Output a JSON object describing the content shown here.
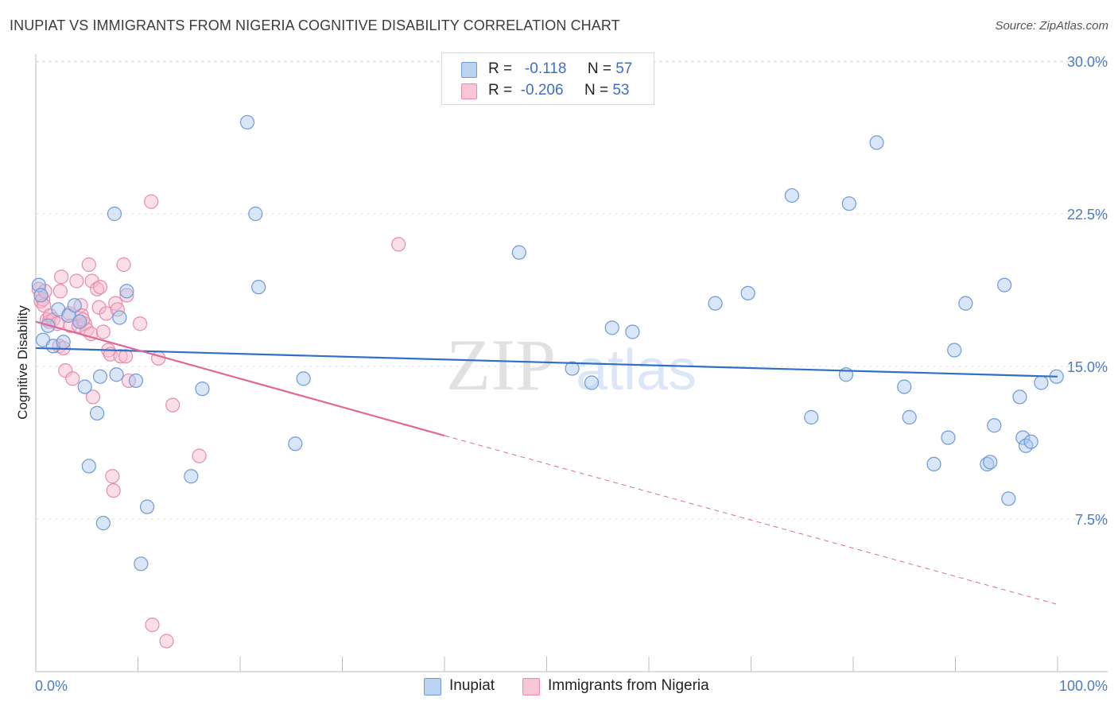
{
  "title": "INUPIAT VS IMMIGRANTS FROM NIGERIA COGNITIVE DISABILITY CORRELATION CHART",
  "source": "Source: ZipAtlas.com",
  "watermark": {
    "zip": "ZIP",
    "atlas": "atlas"
  },
  "legend": {
    "rows": [
      {
        "r_label": "R =",
        "r_value": "-0.118",
        "n_label": "N =",
        "n_value": "57"
      },
      {
        "r_label": "R =",
        "r_value": "-0.206",
        "n_label": "N =",
        "n_value": "53"
      }
    ]
  },
  "bottom_legend": [
    "Inupiat",
    "Immigrants from Nigeria"
  ],
  "colors": {
    "blue_fill": "#a9c8ee",
    "blue_stroke": "#6f9ad6",
    "blue_line": "#2f6fc6",
    "pink_fill": "#f6b9cd",
    "pink_stroke": "#e98aab",
    "pink_line": "#e0679a",
    "grid": "#e3e3e3",
    "axis_text": "#4a7cc0"
  },
  "chart_data": {
    "type": "scatter",
    "title": "INUPIAT VS IMMIGRANTS FROM NIGERIA COGNITIVE DISABILITY CORRELATION CHART",
    "xlabel": "",
    "ylabel": "Cognitive Disability",
    "xlim": [
      0,
      100
    ],
    "ylim": [
      0,
      31
    ],
    "x_tick_labels": [
      "0.0%",
      "100.0%"
    ],
    "y_ticks": [
      7.5,
      15.0,
      22.5,
      30.0
    ],
    "y_tick_labels": [
      "7.5%",
      "15.0%",
      "22.5%",
      "30.0%"
    ],
    "series": [
      {
        "name": "Inupiat",
        "r": -0.118,
        "n": 57,
        "trend": {
          "x": [
            0,
            100
          ],
          "y": [
            15.9,
            14.5
          ]
        },
        "points": [
          [
            0.3,
            19.0
          ],
          [
            0.5,
            18.5
          ],
          [
            0.7,
            16.3
          ],
          [
            1.2,
            17.0
          ],
          [
            1.7,
            16.0
          ],
          [
            2.2,
            17.8
          ],
          [
            2.7,
            16.2
          ],
          [
            3.2,
            17.5
          ],
          [
            3.8,
            18.0
          ],
          [
            4.3,
            17.2
          ],
          [
            4.8,
            14.0
          ],
          [
            5.2,
            10.1
          ],
          [
            6.0,
            12.7
          ],
          [
            6.3,
            14.5
          ],
          [
            6.6,
            7.3
          ],
          [
            7.7,
            22.5
          ],
          [
            7.9,
            14.6
          ],
          [
            8.2,
            17.4
          ],
          [
            8.9,
            18.7
          ],
          [
            9.8,
            14.3
          ],
          [
            10.3,
            5.3
          ],
          [
            10.9,
            8.1
          ],
          [
            15.2,
            9.6
          ],
          [
            16.3,
            13.9
          ],
          [
            20.7,
            27.0
          ],
          [
            21.5,
            22.5
          ],
          [
            21.8,
            18.9
          ],
          [
            25.4,
            11.2
          ],
          [
            26.2,
            14.4
          ],
          [
            47.3,
            20.6
          ],
          [
            52.5,
            14.9
          ],
          [
            54.4,
            14.2
          ],
          [
            56.4,
            16.9
          ],
          [
            58.4,
            16.7
          ],
          [
            66.5,
            18.1
          ],
          [
            69.7,
            18.6
          ],
          [
            74.0,
            23.4
          ],
          [
            75.9,
            12.5
          ],
          [
            79.3,
            14.6
          ],
          [
            79.6,
            23.0
          ],
          [
            82.3,
            26.0
          ],
          [
            85.0,
            14.0
          ],
          [
            85.5,
            12.5
          ],
          [
            87.9,
            10.2
          ],
          [
            89.3,
            11.5
          ],
          [
            89.9,
            15.8
          ],
          [
            91.0,
            18.1
          ],
          [
            93.1,
            10.2
          ],
          [
            93.4,
            10.3
          ],
          [
            93.8,
            12.1
          ],
          [
            94.8,
            19.0
          ],
          [
            95.2,
            8.5
          ],
          [
            96.3,
            13.5
          ],
          [
            96.6,
            11.5
          ],
          [
            96.9,
            11.1
          ],
          [
            97.4,
            11.3
          ],
          [
            98.4,
            14.2
          ],
          [
            99.9,
            14.5
          ]
        ]
      },
      {
        "name": "Immigrants from Nigeria",
        "r": -0.206,
        "n": 53,
        "trend": {
          "x": [
            0,
            40
          ],
          "y": [
            17.2,
            11.6
          ]
        },
        "trend_extension": {
          "x": [
            40,
            100
          ],
          "y": [
            11.6,
            3.3
          ]
        },
        "points": [
          [
            0.3,
            18.8
          ],
          [
            0.5,
            18.2
          ],
          [
            0.7,
            18.3
          ],
          [
            0.8,
            18.0
          ],
          [
            0.9,
            18.7
          ],
          [
            1.1,
            17.3
          ],
          [
            1.3,
            17.2
          ],
          [
            1.4,
            17.5
          ],
          [
            1.7,
            17.3
          ],
          [
            2.1,
            17.1
          ],
          [
            2.3,
            16.0
          ],
          [
            2.4,
            18.7
          ],
          [
            2.5,
            19.4
          ],
          [
            2.7,
            15.9
          ],
          [
            2.9,
            14.8
          ],
          [
            3.3,
            17.6
          ],
          [
            3.4,
            17.0
          ],
          [
            3.6,
            14.4
          ],
          [
            4.0,
            19.2
          ],
          [
            4.2,
            17.0
          ],
          [
            4.4,
            18.0
          ],
          [
            4.5,
            17.5
          ],
          [
            4.8,
            17.1
          ],
          [
            5.0,
            16.8
          ],
          [
            5.2,
            20.0
          ],
          [
            5.4,
            16.6
          ],
          [
            5.5,
            19.2
          ],
          [
            5.6,
            13.5
          ],
          [
            6.0,
            18.8
          ],
          [
            6.2,
            17.9
          ],
          [
            6.3,
            18.9
          ],
          [
            6.6,
            16.7
          ],
          [
            6.9,
            17.6
          ],
          [
            7.1,
            15.8
          ],
          [
            7.3,
            15.6
          ],
          [
            7.5,
            9.6
          ],
          [
            7.6,
            8.9
          ],
          [
            7.8,
            18.1
          ],
          [
            8.0,
            17.8
          ],
          [
            8.3,
            15.5
          ],
          [
            8.6,
            20.0
          ],
          [
            8.8,
            15.5
          ],
          [
            8.9,
            18.5
          ],
          [
            9.1,
            14.3
          ],
          [
            10.2,
            17.1
          ],
          [
            11.3,
            23.1
          ],
          [
            11.4,
            2.3
          ],
          [
            12.0,
            15.4
          ],
          [
            12.8,
            1.5
          ],
          [
            13.4,
            13.1
          ],
          [
            16.0,
            10.6
          ],
          [
            35.5,
            21.0
          ],
          [
            4.6,
            17.3
          ]
        ]
      }
    ]
  }
}
